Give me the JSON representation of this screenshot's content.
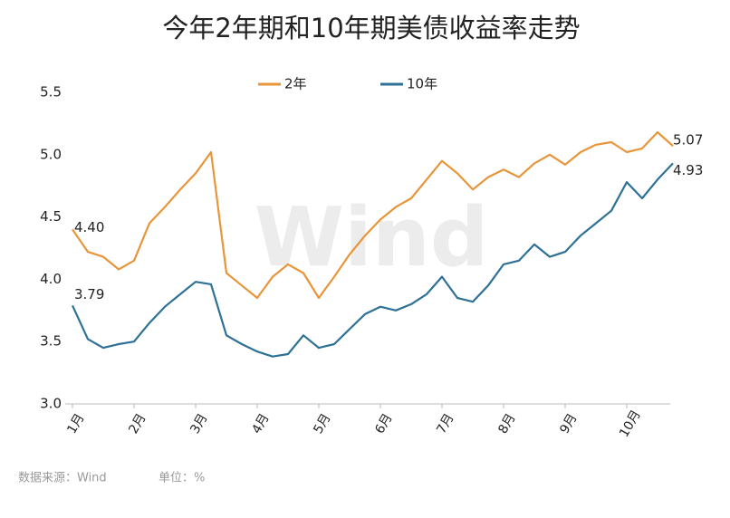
{
  "chart_data": {
    "type": "line",
    "title": "今年2年期和10年期美债收益率走势",
    "categories": [
      "1月",
      null,
      null,
      null,
      "2月",
      null,
      null,
      null,
      "3月",
      null,
      null,
      null,
      "4月",
      null,
      null,
      null,
      "5月",
      null,
      null,
      null,
      "6月",
      null,
      null,
      null,
      "7月",
      null,
      null,
      null,
      "8月",
      null,
      null,
      null,
      "9月",
      null,
      null,
      null,
      "10月",
      null,
      null,
      null
    ],
    "series": [
      {
        "name": "2年",
        "color": "#e8953a",
        "values": [
          4.4,
          4.22,
          4.18,
          4.08,
          4.15,
          4.45,
          4.58,
          4.72,
          4.85,
          5.02,
          4.05,
          3.95,
          3.85,
          4.02,
          4.12,
          4.05,
          3.85,
          4.02,
          4.2,
          4.35,
          4.48,
          4.58,
          4.65,
          4.8,
          4.95,
          4.85,
          4.72,
          4.82,
          4.88,
          4.82,
          4.93,
          5.0,
          4.92,
          5.02,
          5.08,
          5.1,
          5.02,
          5.05,
          5.18,
          5.07
        ],
        "value_labels": [
          "4.40",
          null,
          null,
          null,
          null,
          null,
          null,
          null,
          null,
          null,
          null,
          null,
          null,
          null,
          null,
          null,
          null,
          null,
          null,
          null,
          null,
          null,
          null,
          null,
          null,
          null,
          null,
          null,
          null,
          null,
          null,
          null,
          null,
          null,
          null,
          null,
          null,
          null,
          null,
          "5.07"
        ]
      },
      {
        "name": "10年",
        "color": "#2e7196",
        "values": [
          3.79,
          3.52,
          3.45,
          3.48,
          3.5,
          3.65,
          3.78,
          3.88,
          3.98,
          3.96,
          3.55,
          3.48,
          3.42,
          3.38,
          3.4,
          3.55,
          3.45,
          3.48,
          3.6,
          3.72,
          3.78,
          3.75,
          3.8,
          3.88,
          4.02,
          3.85,
          3.82,
          3.95,
          4.12,
          4.15,
          4.28,
          4.18,
          4.22,
          4.35,
          4.45,
          4.55,
          4.78,
          4.65,
          4.8,
          4.93
        ],
        "value_labels": [
          "3.79",
          null,
          null,
          null,
          null,
          null,
          null,
          null,
          null,
          null,
          null,
          null,
          null,
          null,
          null,
          null,
          null,
          null,
          null,
          null,
          null,
          null,
          null,
          null,
          null,
          null,
          null,
          null,
          null,
          null,
          null,
          null,
          null,
          null,
          null,
          null,
          null,
          null,
          null,
          "4.93"
        ]
      }
    ],
    "ylim": [
      3.0,
      5.5
    ],
    "yticks": [
      {
        "value": 3,
        "label": "3.0"
      },
      3.5,
      {
        "value": 4,
        "label": "4.0"
      },
      4.5,
      {
        "value": 5,
        "label": "5.0"
      },
      5.5
    ],
    "watermark": "Wind",
    "source": "数据来源：Wind",
    "unit": "单位：%"
  }
}
